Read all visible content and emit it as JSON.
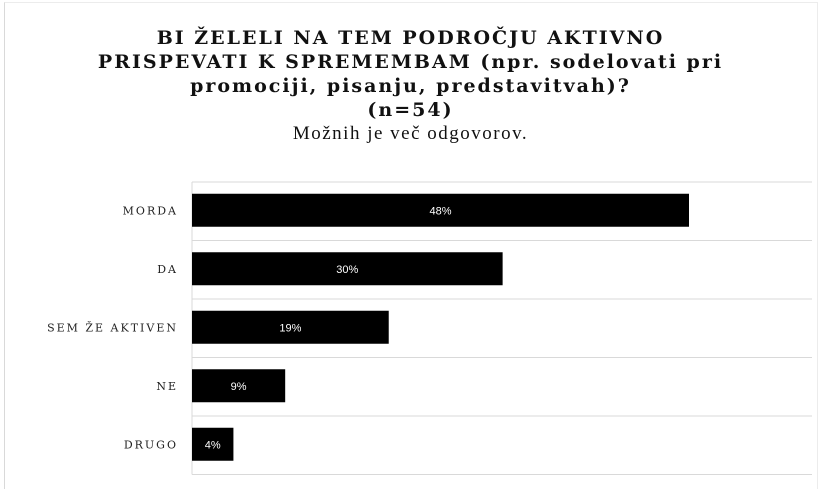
{
  "chart_data": {
    "type": "bar",
    "orientation": "horizontal",
    "title_lines": [
      "BI ŽELELI NA TEM PODROČJU AKTIVNO",
      "PRISPEVATI K SPREMEMBAM (npr. sodelovati pri",
      "promociji, pisanju, predstavitvah)?",
      "(n=54)"
    ],
    "subtitle": "Možnih je več odgovorov.",
    "categories": [
      "MORDA",
      "DA",
      "SEM ŽE AKTIVEN",
      "NE",
      "DRUGO"
    ],
    "values": [
      48,
      30,
      19,
      9,
      4
    ],
    "data_labels": [
      "48%",
      "30%",
      "19%",
      "9%",
      "4%"
    ],
    "unit": "%",
    "xlim": [
      0,
      60
    ],
    "grid": true,
    "bar_color": "#000000",
    "gridline_color": "#d9d9d9",
    "legend": "none"
  }
}
